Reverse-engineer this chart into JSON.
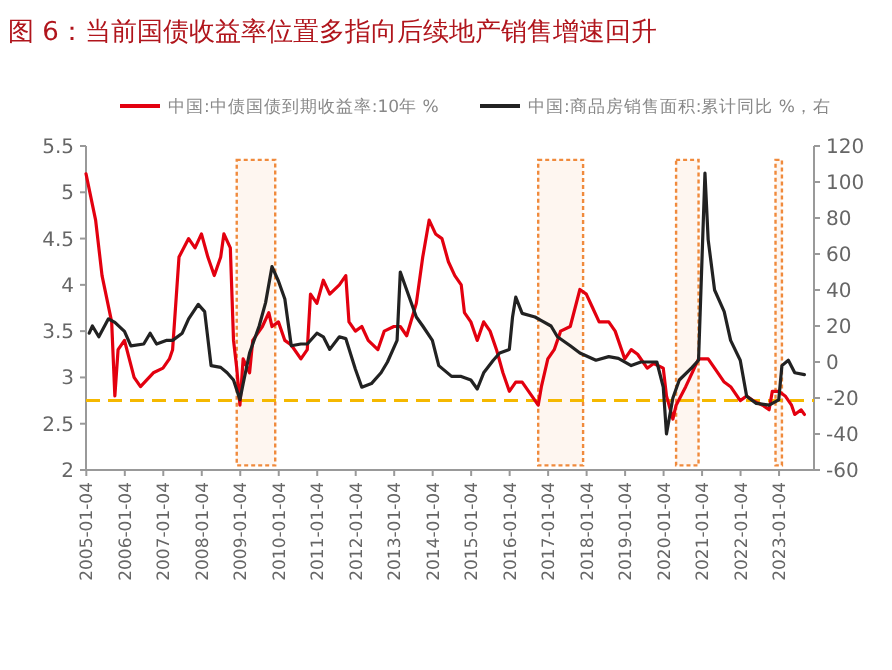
{
  "chart_data": {
    "type": "line",
    "title": "图 6：当前国债收益率位置多指向后续地产销售增速回升",
    "xlim": [
      "2005-01",
      "2023-12"
    ],
    "xticks": [
      "2005-01-04",
      "2006-01-04",
      "2007-01-04",
      "2008-01-04",
      "2009-01-04",
      "2010-01-04",
      "2011-01-04",
      "2012-01-04",
      "2013-01-04",
      "2014-01-04",
      "2015-01-04",
      "2016-01-04",
      "2017-01-04",
      "2018-01-04",
      "2019-01-04",
      "2020-01-04",
      "2021-01-04",
      "2022-01-04",
      "2023-01-04"
    ],
    "ylim": [
      2,
      5.5
    ],
    "yticks": [
      2,
      2.5,
      3,
      3.5,
      4,
      4.5,
      5,
      5.5
    ],
    "y2lim": [
      -60,
      120
    ],
    "y2ticks": [
      -60,
      -40,
      -20,
      0,
      20,
      40,
      60,
      80,
      100,
      120
    ],
    "legend": "top",
    "grid": false,
    "marker": "none",
    "line_style": "solid",
    "series": [
      {
        "name": "中国:中债国债到期收益率:10年 %",
        "color": "#e3000f",
        "x": [
          "2005-01",
          "2005-04",
          "2005-06",
          "2005-09",
          "2005-10",
          "2005-11",
          "2006-01",
          "2006-04",
          "2006-06",
          "2006-10",
          "2007-01",
          "2007-03",
          "2007-04",
          "2007-06",
          "2007-09",
          "2007-11",
          "2008-01",
          "2008-03",
          "2008-05",
          "2008-07",
          "2008-08",
          "2008-10",
          "2008-11",
          "2008-12",
          "2009-01",
          "2009-02",
          "2009-04",
          "2009-05",
          "2009-08",
          "2009-10",
          "2009-11",
          "2010-01",
          "2010-03",
          "2010-05",
          "2010-08",
          "2010-10",
          "2010-11",
          "2011-01",
          "2011-03",
          "2011-05",
          "2011-08",
          "2011-10",
          "2011-11",
          "2012-01",
          "2012-03",
          "2012-05",
          "2012-08",
          "2012-10",
          "2013-01",
          "2013-03",
          "2013-05",
          "2013-08",
          "2013-10",
          "2013-12",
          "2014-02",
          "2014-04",
          "2014-06",
          "2014-08",
          "2014-10",
          "2014-11",
          "2015-01",
          "2015-03",
          "2015-05",
          "2015-07",
          "2015-09",
          "2015-11",
          "2016-01",
          "2016-03",
          "2016-05",
          "2016-08",
          "2016-10",
          "2016-11",
          "2017-01",
          "2017-03",
          "2017-05",
          "2017-08",
          "2017-11",
          "2018-01",
          "2018-03",
          "2018-05",
          "2018-08",
          "2018-10",
          "2019-01",
          "2019-03",
          "2019-05",
          "2019-08",
          "2019-10",
          "2020-01",
          "2020-02",
          "2020-04",
          "2020-05",
          "2020-08",
          "2020-10",
          "2020-12",
          "2021-03",
          "2021-05",
          "2021-08",
          "2021-10",
          "2022-01",
          "2022-03",
          "2022-05",
          "2022-08",
          "2022-10",
          "2022-11",
          "2023-01",
          "2023-03",
          "2023-05",
          "2023-06",
          "2023-08",
          "2023-09"
        ],
        "values": [
          5.2,
          4.7,
          4.1,
          3.6,
          2.8,
          3.3,
          3.4,
          3.0,
          2.9,
          3.05,
          3.1,
          3.2,
          3.3,
          4.3,
          4.5,
          4.4,
          4.55,
          4.3,
          4.1,
          4.3,
          4.55,
          4.4,
          3.4,
          3.1,
          2.7,
          3.2,
          3.05,
          3.4,
          3.55,
          3.7,
          3.55,
          3.6,
          3.4,
          3.35,
          3.2,
          3.3,
          3.9,
          3.8,
          4.05,
          3.9,
          4.0,
          4.1,
          3.6,
          3.5,
          3.55,
          3.4,
          3.3,
          3.5,
          3.55,
          3.55,
          3.45,
          3.8,
          4.3,
          4.7,
          4.55,
          4.5,
          4.25,
          4.1,
          4.0,
          3.7,
          3.6,
          3.4,
          3.6,
          3.5,
          3.3,
          3.05,
          2.85,
          2.95,
          2.95,
          2.8,
          2.7,
          2.9,
          3.2,
          3.3,
          3.5,
          3.55,
          3.95,
          3.9,
          3.75,
          3.6,
          3.6,
          3.5,
          3.2,
          3.3,
          3.25,
          3.1,
          3.15,
          3.1,
          2.8,
          2.55,
          2.7,
          2.9,
          3.05,
          3.2,
          3.2,
          3.1,
          2.95,
          2.9,
          2.75,
          2.8,
          2.75,
          2.7,
          2.65,
          2.85,
          2.85,
          2.8,
          2.7,
          2.6,
          2.65,
          2.6
        ]
      },
      {
        "name": "中国:商品房销售面积:累计同比 %，右",
        "color": "#222222",
        "axis": "y2",
        "x": [
          "2005-02",
          "2005-03",
          "2005-05",
          "2005-08",
          "2005-10",
          "2006-01",
          "2006-03",
          "2006-07",
          "2006-09",
          "2006-11",
          "2007-02",
          "2007-04",
          "2007-07",
          "2007-09",
          "2007-12",
          "2008-02",
          "2008-04",
          "2008-07",
          "2008-09",
          "2008-11",
          "2009-01",
          "2009-02",
          "2009-04",
          "2009-07",
          "2009-09",
          "2009-11",
          "2010-01",
          "2010-03",
          "2010-05",
          "2010-08",
          "2010-10",
          "2011-01",
          "2011-03",
          "2011-05",
          "2011-08",
          "2011-10",
          "2012-01",
          "2012-03",
          "2012-06",
          "2012-09",
          "2012-11",
          "2013-02",
          "2013-03",
          "2013-05",
          "2013-08",
          "2013-10",
          "2014-01",
          "2014-03",
          "2014-07",
          "2014-10",
          "2015-01",
          "2015-03",
          "2015-05",
          "2015-08",
          "2015-10",
          "2016-01",
          "2016-02",
          "2016-03",
          "2016-05",
          "2016-09",
          "2016-11",
          "2017-02",
          "2017-04",
          "2017-08",
          "2017-11",
          "2018-04",
          "2018-08",
          "2018-11",
          "2019-03",
          "2019-06",
          "2019-11",
          "2020-01",
          "2020-02",
          "2020-04",
          "2020-06",
          "2020-10",
          "2020-12",
          "2021-02",
          "2021-03",
          "2021-05",
          "2021-08",
          "2021-10",
          "2022-01",
          "2022-03",
          "2022-06",
          "2022-10",
          "2023-01",
          "2023-02",
          "2023-04",
          "2023-06",
          "2023-09"
        ],
        "values": [
          16,
          20,
          14,
          24,
          22,
          17,
          9,
          10,
          16,
          10,
          12,
          12,
          16,
          24,
          32,
          28,
          -2,
          -3,
          -6,
          -10,
          -21,
          -12,
          5,
          20,
          33,
          53,
          45,
          35,
          9,
          10,
          10,
          16,
          14,
          7,
          14,
          13,
          -4,
          -14,
          -12,
          -6,
          0,
          12,
          50,
          40,
          25,
          20,
          12,
          -2,
          -8,
          -8,
          -10,
          -15,
          -6,
          1,
          5,
          7,
          25,
          36,
          27,
          25,
          23,
          20,
          14,
          9,
          5,
          1,
          3,
          2,
          -2,
          0,
          0,
          -14,
          -40,
          -20,
          -10,
          -3,
          1,
          105,
          68,
          40,
          28,
          12,
          1,
          -19,
          -23,
          -24,
          -21,
          -2,
          1,
          -6,
          -7
        ]
      }
    ],
    "ref_lines": [
      {
        "axis": "y",
        "value": 2.75,
        "color": "#f5b800",
        "line_style": "dashed"
      }
    ],
    "bands": [
      {
        "axis": "x",
        "from": "2008-12",
        "to": "2009-12",
        "color": "#f08a3c"
      },
      {
        "axis": "x",
        "from": "2016-10",
        "to": "2017-12",
        "color": "#f08a3c"
      },
      {
        "axis": "x",
        "from": "2020-05",
        "to": "2020-12",
        "color": "#f08a3c"
      },
      {
        "axis": "x",
        "from": "2022-12",
        "to": "2023-02",
        "color": "#f08a3c"
      }
    ]
  }
}
